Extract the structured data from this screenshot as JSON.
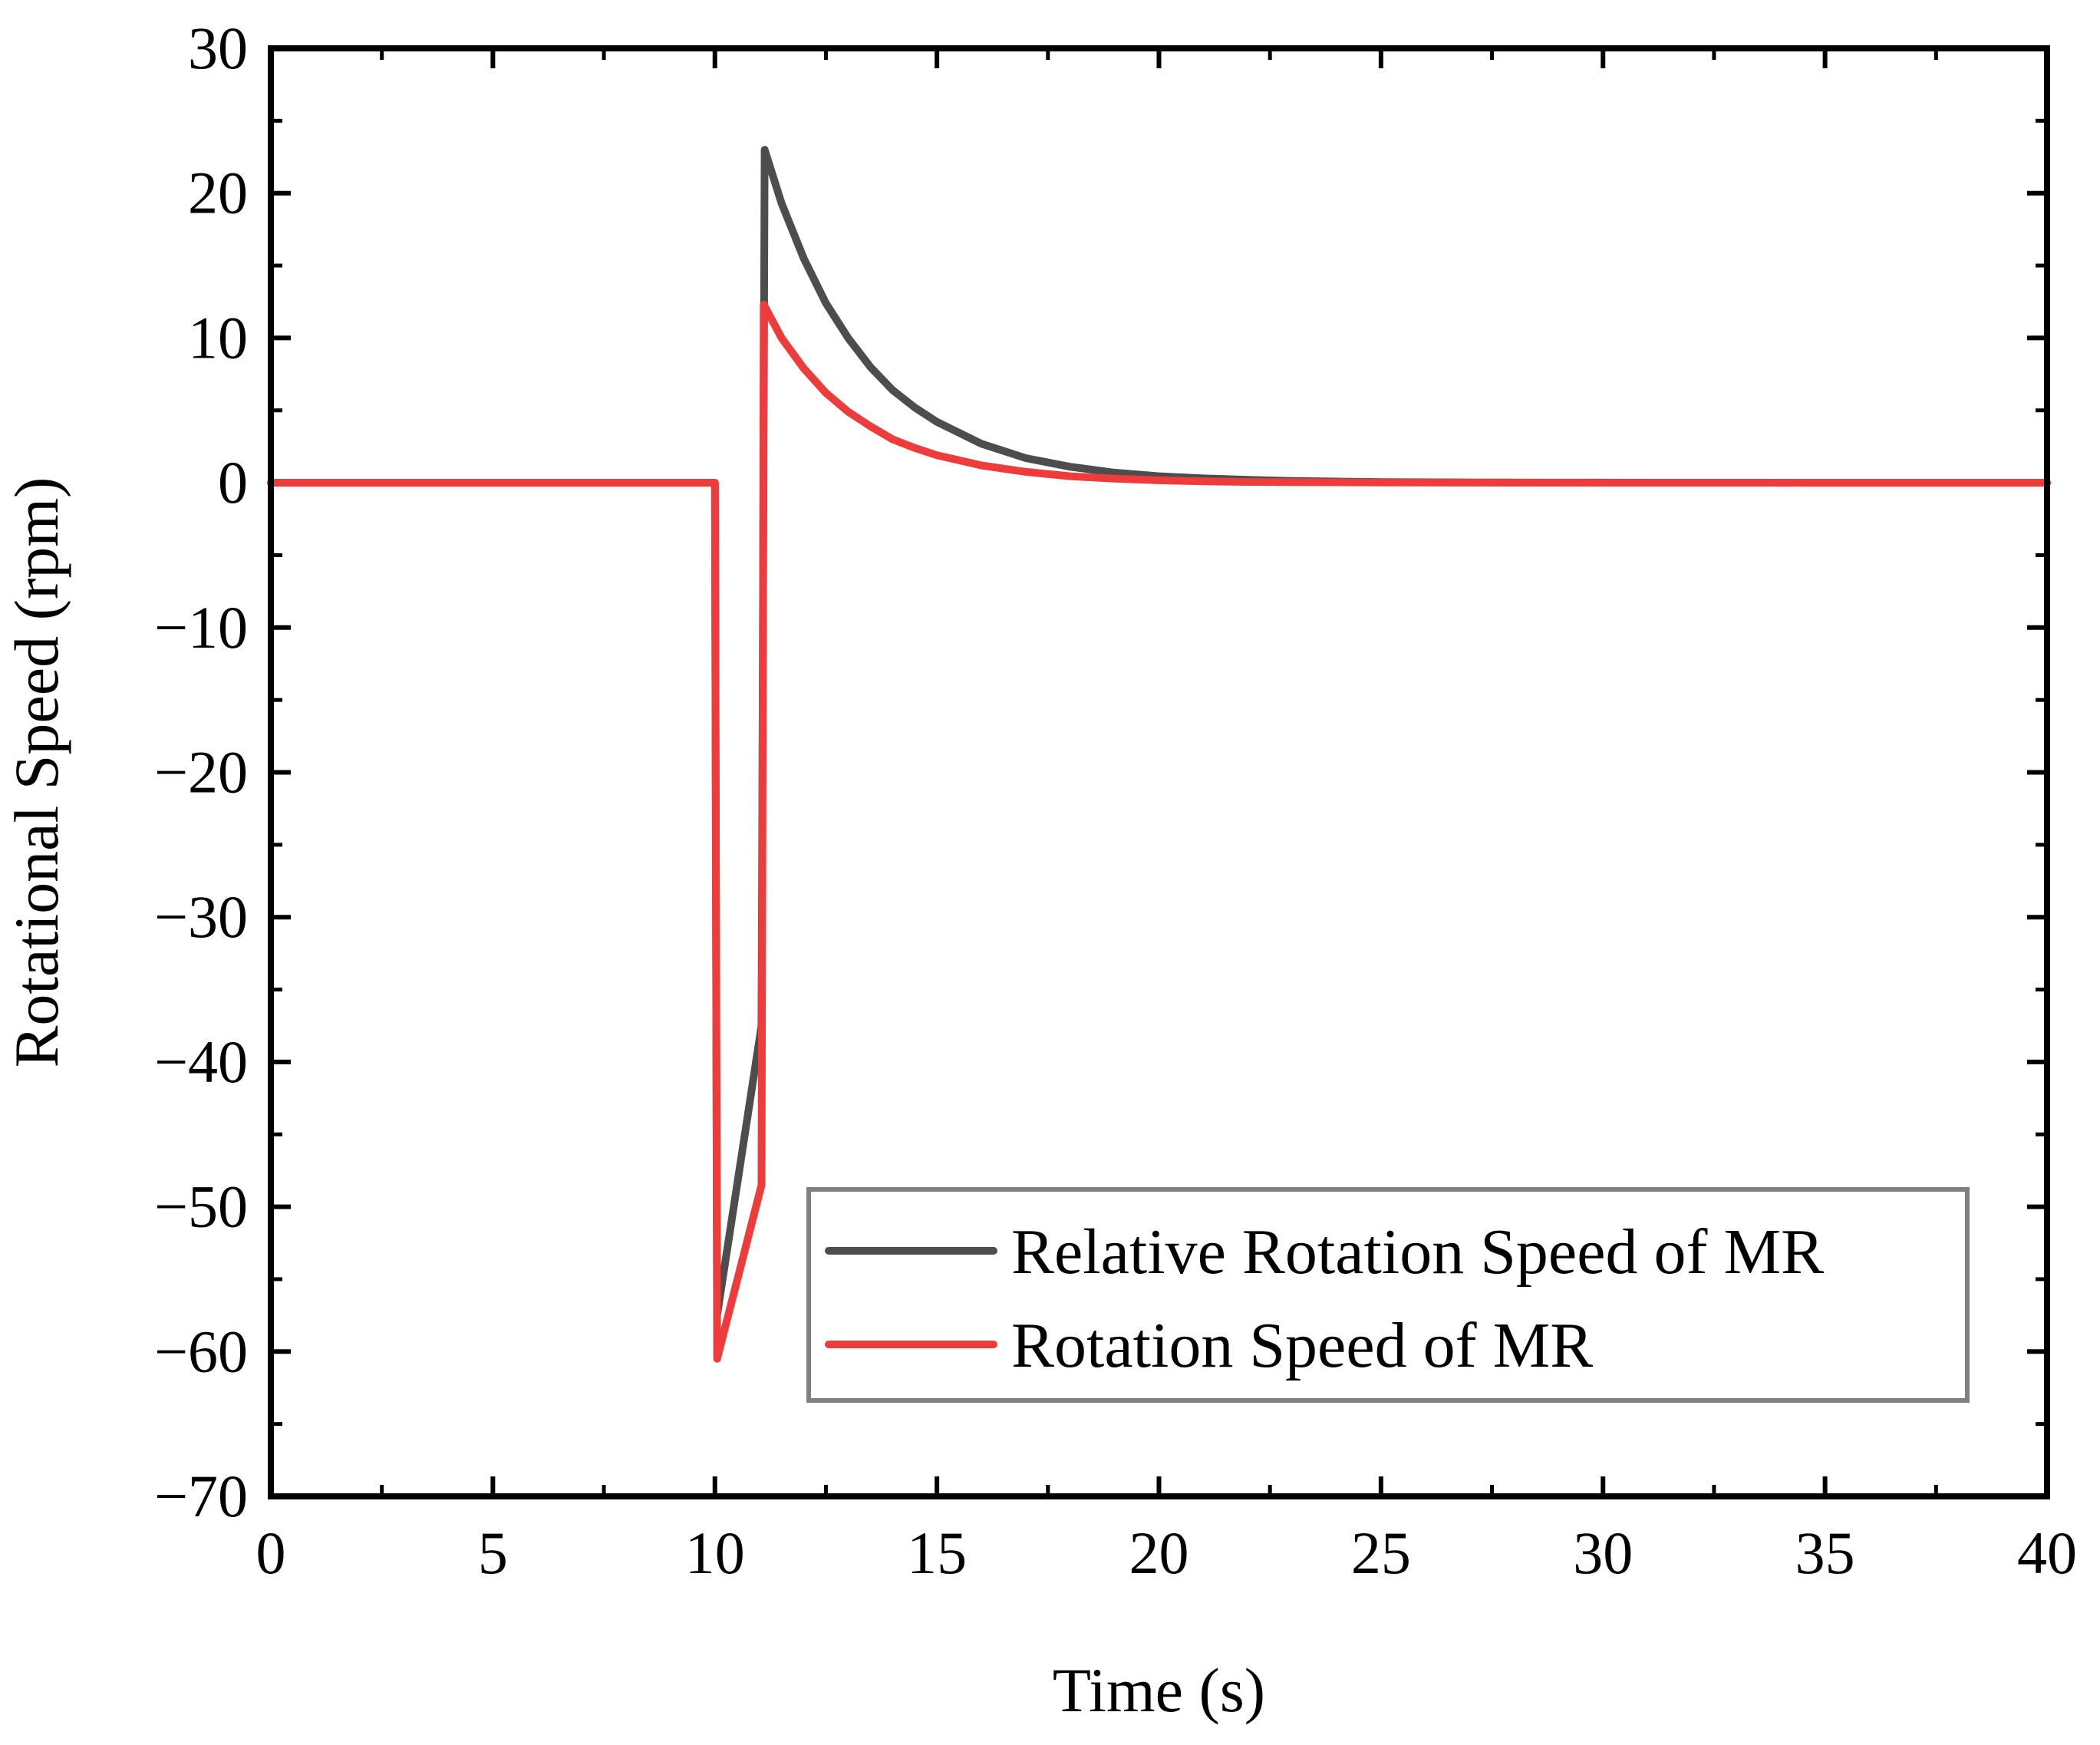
{
  "chart_data": {
    "type": "line",
    "title": "",
    "xlabel": "Time (s)",
    "ylabel": "Rotational Speed (rpm)",
    "xlim": [
      0,
      40
    ],
    "ylim": [
      -70,
      30
    ],
    "xticks": [
      0,
      5,
      10,
      15,
      20,
      25,
      30,
      35,
      40
    ],
    "xtick_labels": [
      "0",
      "5",
      "10",
      "15",
      "20",
      "25",
      "30",
      "35",
      "40"
    ],
    "yticks": [
      30,
      20,
      10,
      0,
      -10,
      -20,
      -30,
      -40,
      -50,
      -60,
      -70
    ],
    "ytick_labels": [
      "30",
      "20",
      "10",
      "0",
      "−10",
      "−20",
      "−30",
      "−40",
      "−50",
      "−60",
      "−70"
    ],
    "grid": false,
    "legend_position": "bottom-right",
    "series": [
      {
        "name": "Relative Rotation Speed of MR",
        "color": "#4d4d4d",
        "x": [
          0,
          10,
          10.05,
          11.05,
          11.12,
          11.5,
          12,
          12.5,
          13,
          13.5,
          14,
          14.5,
          15,
          16,
          17,
          18,
          19,
          20,
          21,
          22,
          23,
          25,
          27,
          30,
          35,
          40
        ],
        "y": [
          0,
          0,
          -57.5,
          -37.5,
          23,
          19.3,
          15.5,
          12.4,
          10.0,
          8.0,
          6.4,
          5.2,
          4.2,
          2.7,
          1.7,
          1.1,
          0.7,
          0.45,
          0.3,
          0.2,
          0.12,
          0.05,
          0.02,
          0.01,
          0,
          0
        ]
      },
      {
        "name": "Rotation Speed of MR",
        "color": "#ee3b3b",
        "x": [
          0,
          10,
          10.05,
          11.05,
          11.1,
          11.5,
          12,
          12.5,
          13,
          13.5,
          14,
          14.5,
          15,
          16,
          17,
          18,
          19,
          20,
          21,
          22,
          25,
          30,
          35,
          40
        ],
        "y": [
          0,
          0,
          -60.5,
          -48.5,
          12.3,
          10.0,
          7.9,
          6.2,
          4.9,
          3.9,
          3.0,
          2.4,
          1.9,
          1.2,
          0.75,
          0.45,
          0.28,
          0.17,
          0.1,
          0.06,
          0.02,
          0,
          0,
          0
        ]
      }
    ]
  }
}
